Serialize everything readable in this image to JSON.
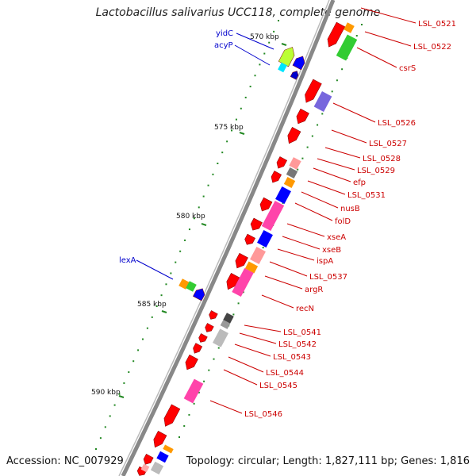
{
  "title": "Lactobacillus salivarius UCC118, complete genome",
  "footer": {
    "accession": "Accession: NC_007929",
    "topology": "Topology: circular; Length: 1,827,111 bp; Genes: 1,816"
  },
  "scale_labels": [
    "570 kbp",
    "575 kbp",
    "580 kbp",
    "585 kbp",
    "590 kbp"
  ],
  "left_labels": [
    "yidC",
    "acyP",
    "lexA"
  ],
  "right_labels": [
    "LSL_0521",
    "LSL_0522",
    "csrS",
    "LSL_0526",
    "LSL_0527",
    "LSL_0528",
    "LSL_0529",
    "efp",
    "LSL_0531",
    "nusB",
    "folD",
    "xseA",
    "xseB",
    "ispA",
    "LSL_0537",
    "argR",
    "recN",
    "LSL_0541",
    "LSL_0542",
    "LSL_0543",
    "LSL_0544",
    "LSL_0545",
    "LSL_0546"
  ],
  "colors": {
    "cds": "#ff0000",
    "left_label": "#0000cc",
    "right_label": "#cc0000",
    "backbone": "#888888",
    "tick": "#228822"
  }
}
